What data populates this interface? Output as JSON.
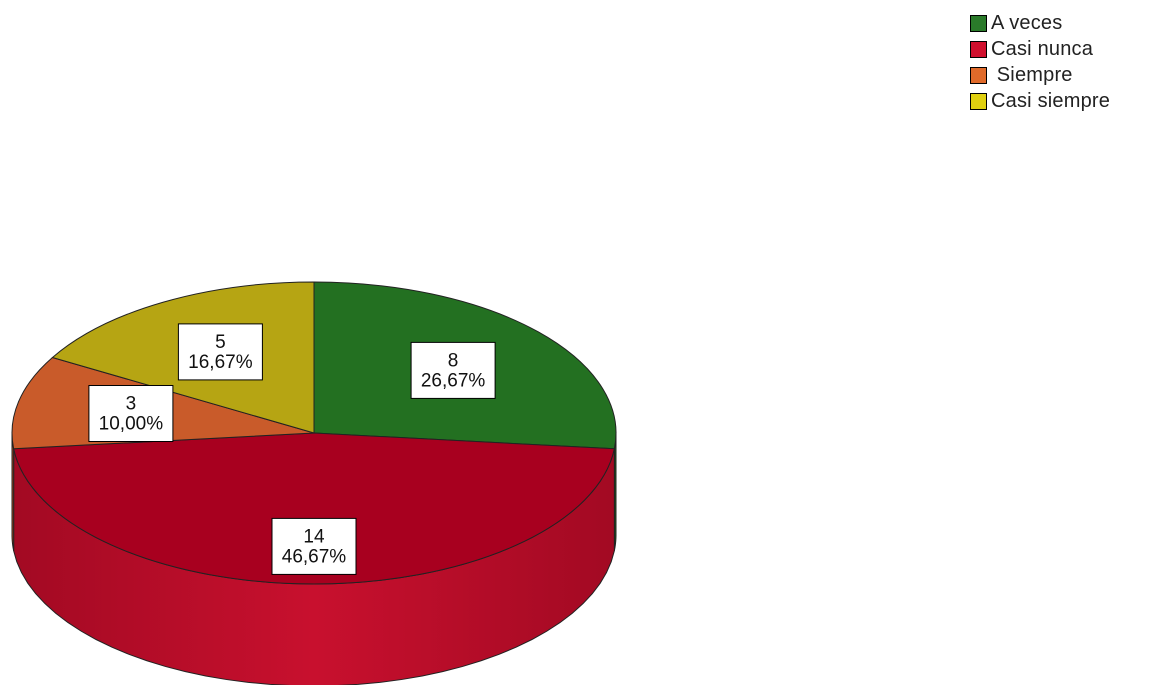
{
  "chart_data": {
    "type": "pie",
    "title": "",
    "labels": [
      "A veces",
      "Casi nunca",
      "Siempre",
      "Casi siempre"
    ],
    "values": [
      8,
      14,
      3,
      5
    ],
    "percentages": [
      "26,67%",
      "46,67%",
      "10,00%",
      "16,67%"
    ],
    "counts": [
      "8",
      "14",
      "3",
      "5"
    ],
    "colors": [
      "#237021",
      "#a8001f",
      "#c95b2a",
      "#b6a513"
    ],
    "side_colors": [
      "#1a5a18",
      "#c8102e",
      "#b04a1f",
      "#9c8c0e"
    ],
    "legend_colors": [
      "#2a7a2a",
      "#d0102e",
      "#e06a2a",
      "#e0d010"
    ],
    "legend_position": "top-right",
    "style": "3d"
  },
  "legend": {
    "items": [
      {
        "label": "A veces"
      },
      {
        "label": "Casi nunca"
      },
      {
        "label": " Siempre"
      },
      {
        "label": "Casi siempre"
      }
    ]
  }
}
